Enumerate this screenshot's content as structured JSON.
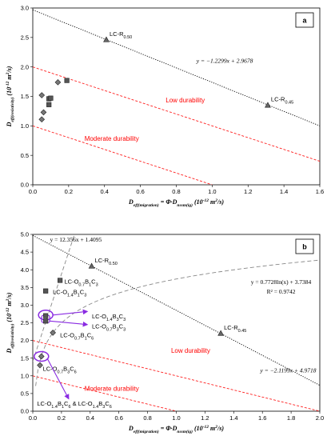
{
  "chart_data": [
    {
      "type": "scatter",
      "panel": "a",
      "xlabel": "D_eff(migration) = Φ·D_nssm(ig) (10⁻¹² m²/s)",
      "ylabel": "D_eff(resistivity) (10⁻¹² m²/s)",
      "xlim": [
        0,
        1.6
      ],
      "ylim": [
        0,
        3.0
      ],
      "x_ticks": [
        "0.0",
        "0.2",
        "0.4",
        "0.6",
        "0.8",
        "1.0",
        "1.2",
        "1.4",
        "1.6"
      ],
      "y_ticks": [
        "0.0",
        "0.5",
        "1.0",
        "1.5",
        "2.0",
        "2.5",
        "3.0"
      ],
      "zones": [
        "Low durability",
        "Moderate durability"
      ],
      "zone_lines": [
        {
          "name": "upper",
          "x": [
            0,
            1.6
          ],
          "y": [
            2.0,
            0.4
          ]
        },
        {
          "name": "lower",
          "x": [
            0,
            1.0
          ],
          "y": [
            1.0,
            0.0
          ]
        }
      ],
      "trendline": {
        "equation": "y = −1.2299x + 2.9678",
        "slope": -1.2299,
        "intercept": 2.9678
      },
      "reference_points": [
        {
          "label": "LC-R0.50",
          "x": 0.41,
          "y": 2.46
        },
        {
          "label": "LC-R0.45",
          "x": 1.31,
          "y": 1.35
        }
      ],
      "points": [
        {
          "x": 0.05,
          "y": 1.52,
          "marker": "diamond"
        },
        {
          "x": 0.05,
          "y": 1.11,
          "marker": "diamond"
        },
        {
          "x": 0.06,
          "y": 1.23,
          "marker": "diamond"
        },
        {
          "x": 0.09,
          "y": 1.46,
          "marker": "square"
        },
        {
          "x": 0.1,
          "y": 1.47,
          "marker": "square"
        },
        {
          "x": 0.09,
          "y": 1.36,
          "marker": "square"
        },
        {
          "x": 0.14,
          "y": 1.74,
          "marker": "diamond"
        },
        {
          "x": 0.19,
          "y": 1.77,
          "marker": "square"
        }
      ],
      "panel_label": "a"
    },
    {
      "type": "scatter",
      "panel": "b",
      "xlabel": "D_eff(migration) = Φ·D_nssm(ig) (10⁻¹² m²/s)",
      "ylabel": "D_eff(resistivity) (10⁻¹² m²/s)",
      "xlim": [
        0,
        2.0
      ],
      "ylim": [
        0,
        5.0
      ],
      "x_ticks": [
        "0.0",
        "0.2",
        "0.4",
        "0.6",
        "0.8",
        "1.0",
        "1.2",
        "1.4",
        "1.6",
        "1.8",
        "2.0"
      ],
      "y_ticks": [
        "0.0",
        "0.5",
        "1.0",
        "1.5",
        "2.0",
        "2.5",
        "3.0",
        "3.5",
        "4.0",
        "4.5",
        "5.0"
      ],
      "zones": [
        "Low durability",
        "Moderate durability"
      ],
      "zone_lines": [
        {
          "name": "upper",
          "x": [
            0,
            2.0
          ],
          "y": [
            2.0,
            0.0
          ]
        },
        {
          "name": "lower",
          "x": [
            0,
            1.0
          ],
          "y": [
            1.0,
            0.0
          ]
        }
      ],
      "trendlines": [
        {
          "equation": "y = 12.356x + 1.4095",
          "type": "linear",
          "slope": 12.356,
          "intercept": 1.4095
        },
        {
          "equation": "y = 0.7728ln(x) + 3.7384",
          "r2": "R² = 0.9742",
          "type": "log",
          "a": 0.7728,
          "b": 3.7384
        },
        {
          "equation": "y = −2.1199x + 4.9718",
          "type": "linear",
          "slope": -2.1199,
          "intercept": 4.9718
        }
      ],
      "reference_points": [
        {
          "label": "LC-R0.50",
          "x": 0.41,
          "y": 4.1
        },
        {
          "label": "LC-R0.45",
          "x": 1.31,
          "y": 2.2
        }
      ],
      "points": [
        {
          "label": "LC-O0.7B1C3",
          "x": 0.19,
          "y": 3.7,
          "marker": "square"
        },
        {
          "label": "LC-O1.4B1C3",
          "x": 0.09,
          "y": 3.4,
          "marker": "square"
        },
        {
          "label": "LC-O1.4B3C3",
          "x": 0.09,
          "y": 2.7,
          "marker": "square"
        },
        {
          "label": "LC-O0.7B3C3",
          "x": 0.09,
          "y": 2.55,
          "marker": "square"
        },
        {
          "label": "LC-O0.7B1C6",
          "x": 0.14,
          "y": 2.22,
          "marker": "diamond"
        },
        {
          "label": "LC-O0.7B3C6",
          "x": 0.06,
          "y": 1.55,
          "marker": "diamond"
        },
        {
          "label": "",
          "x": 0.05,
          "y": 1.3,
          "marker": "diamond"
        }
      ],
      "callouts": [
        "LC-O1.4B1C6 & LC-O1.4B3C6"
      ],
      "panel_label": "b"
    }
  ]
}
